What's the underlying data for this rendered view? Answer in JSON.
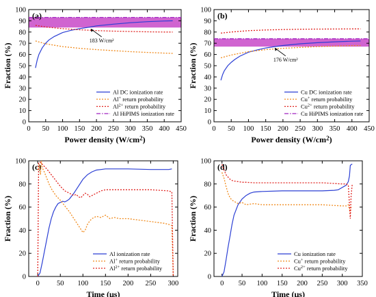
{
  "chart_data": [
    {
      "panel": "(a)",
      "type": "line",
      "xlabel": "Power density (W/cm²)",
      "ylabel": "Fraction (%)",
      "xlim": [
        0,
        450
      ],
      "ylim": [
        0,
        100
      ],
      "xticks": [
        0,
        50,
        100,
        150,
        200,
        250,
        300,
        350,
        400,
        450
      ],
      "yticks": [
        0,
        10,
        20,
        30,
        40,
        50,
        60,
        70,
        80,
        90,
        100
      ],
      "legend_position": "bottom-right",
      "band": {
        "y_low": 84,
        "y_high": 93,
        "color": "#c030c0"
      },
      "annotation": {
        "text": "183 W/cm²",
        "x": 183,
        "y": 83
      },
      "series": [
        {
          "name": "Al DC ionization rate",
          "color": "#2b3fd4",
          "dash": "solid",
          "x": [
            20,
            25,
            30,
            40,
            50,
            60,
            75,
            100,
            125,
            150,
            183,
            200,
            250,
            300,
            350,
            400,
            425
          ],
          "y": [
            48,
            55,
            60,
            66,
            70,
            73,
            76,
            79.5,
            81.5,
            83,
            84.5,
            85.5,
            87,
            88.3,
            89.2,
            89.8,
            90
          ]
        },
        {
          "name": "Al⁺ return probability",
          "color": "#f08a1c",
          "dash": "dot",
          "x": [
            20,
            50,
            100,
            150,
            200,
            250,
            300,
            350,
            400,
            425
          ],
          "y": [
            72,
            69.5,
            67,
            65.5,
            64.3,
            63.4,
            62.5,
            61.8,
            61.2,
            61
          ]
        },
        {
          "name": "Al²⁺ return probability",
          "color": "#e0201c",
          "dash": "dot",
          "x": [
            20,
            50,
            100,
            150,
            200,
            250,
            300,
            350,
            400,
            425
          ],
          "y": [
            86,
            84.5,
            83,
            82,
            81.3,
            80.8,
            80.5,
            80.2,
            80,
            80
          ]
        },
        {
          "name": "Al HiPIMS ionization rate",
          "color": "#a020c0",
          "dash": "dashdot",
          "x": [
            0,
            450
          ],
          "y": [
            93,
            93
          ]
        }
      ]
    },
    {
      "panel": "(b)",
      "type": "line",
      "xlabel": "Power density (W/cm²)",
      "ylabel": "Fraction (%)",
      "xlim": [
        0,
        450
      ],
      "ylim": [
        0,
        100
      ],
      "xticks": [
        0,
        50,
        100,
        150,
        200,
        250,
        300,
        350,
        400,
        450
      ],
      "yticks": [
        0,
        10,
        20,
        30,
        40,
        50,
        60,
        70,
        80,
        90,
        100
      ],
      "legend_position": "bottom-right",
      "band": {
        "y_low": 67,
        "y_high": 74,
        "color": "#c030c0"
      },
      "annotation": {
        "text": "176 W/cm²",
        "x": 176,
        "y": 66
      },
      "series": [
        {
          "name": "Cu DC ionization rate",
          "color": "#2b3fd4",
          "dash": "solid",
          "x": [
            20,
            25,
            30,
            40,
            50,
            60,
            75,
            100,
            125,
            150,
            176,
            200,
            250,
            300,
            350,
            400,
            425
          ],
          "y": [
            37,
            42,
            45.5,
            50,
            53,
            55.5,
            58.5,
            62,
            64,
            65.8,
            67,
            68,
            69.5,
            70.5,
            71.3,
            71.8,
            72
          ]
        },
        {
          "name": "Cu⁺ return probability",
          "color": "#f08a1c",
          "dash": "dot",
          "x": [
            20,
            50,
            100,
            150,
            200,
            250,
            300,
            350,
            400,
            425
          ],
          "y": [
            57,
            59.5,
            62.5,
            64.3,
            65.5,
            66.3,
            67,
            67.5,
            67.9,
            68
          ]
        },
        {
          "name": "Cu²⁺ return probability",
          "color": "#e0201c",
          "dash": "dot",
          "x": [
            20,
            50,
            100,
            150,
            200,
            250,
            300,
            350,
            400,
            425
          ],
          "y": [
            79,
            80,
            81.2,
            81.8,
            82.2,
            82.5,
            82.6,
            82.7,
            82.8,
            82.8
          ]
        },
        {
          "name": "Cu HiPIMS ionization rate",
          "color": "#a020c0",
          "dash": "dashdot",
          "x": [
            0,
            450
          ],
          "y": [
            74,
            74
          ]
        }
      ]
    },
    {
      "panel": "(c)",
      "type": "line",
      "xlabel": "Time (μs)",
      "ylabel": "Fraction (%)",
      "xlim": [
        -20,
        310
      ],
      "ylim": [
        0,
        100
      ],
      "xticks": [
        0,
        50,
        100,
        150,
        200,
        250,
        300
      ],
      "yticks": [
        0,
        20,
        40,
        60,
        80,
        100
      ],
      "legend_position": "bottom-right",
      "series": [
        {
          "name": "Al ionization rate",
          "color": "#2b3fd4",
          "dash": "solid",
          "x": [
            0,
            5,
            10,
            15,
            20,
            25,
            30,
            35,
            40,
            45,
            50,
            55,
            60,
            65,
            70,
            80,
            90,
            100,
            110,
            120,
            130,
            140,
            150,
            160,
            180,
            200,
            250,
            290,
            297
          ],
          "y": [
            0,
            3,
            12,
            22,
            32,
            42,
            50,
            56,
            60,
            63,
            64,
            65,
            64.5,
            65.5,
            67,
            72,
            78,
            84,
            88,
            90.5,
            92,
            92.5,
            93,
            93,
            93,
            93,
            92.5,
            92.5,
            93
          ]
        },
        {
          "name": "Al⁺ return probability",
          "color": "#f08a1c",
          "dash": "dot",
          "x": [
            0,
            3,
            6,
            8,
            10,
            15,
            20,
            25,
            30,
            40,
            50,
            60,
            70,
            80,
            90,
            100,
            105,
            110,
            115,
            120,
            130,
            140,
            150,
            160,
            170,
            180,
            200,
            220,
            240,
            260,
            280,
            290,
            297,
            300
          ],
          "y": [
            92,
            97,
            88,
            100,
            94,
            90,
            85,
            80,
            76,
            70,
            66,
            61,
            56,
            50,
            44,
            38,
            40,
            45,
            48,
            50,
            52,
            51,
            53,
            50,
            51,
            50,
            50,
            49,
            48,
            47,
            46,
            45,
            44,
            0
          ]
        },
        {
          "name": "Al²⁺ return probability",
          "color": "#e0201c",
          "dash": "dot",
          "x": [
            0,
            2,
            5,
            10,
            15,
            20,
            30,
            40,
            50,
            60,
            70,
            80,
            85,
            90,
            95,
            100,
            105,
            110,
            115,
            120,
            130,
            140,
            150,
            160,
            180,
            200,
            250,
            290,
            297,
            300
          ],
          "y": [
            0,
            98,
            99,
            97,
            95,
            93,
            88,
            83,
            78,
            74,
            72,
            70,
            71,
            69,
            68,
            70,
            72,
            71,
            69,
            70,
            72,
            74,
            75,
            75,
            75,
            75,
            75,
            74,
            73,
            0
          ]
        }
      ]
    },
    {
      "panel": "(d)",
      "type": "line",
      "xlabel": "Time (μs)",
      "ylabel": "Fraction (%)",
      "xlim": [
        -20,
        350
      ],
      "ylim": [
        0,
        100
      ],
      "xticks": [
        0,
        50,
        100,
        150,
        200,
        250,
        300,
        350
      ],
      "yticks": [
        0,
        20,
        40,
        60,
        80,
        100
      ],
      "legend_position": "bottom-right",
      "series": [
        {
          "name": "Cu ionization rate",
          "color": "#2b3fd4",
          "dash": "solid",
          "x": [
            0,
            5,
            10,
            15,
            20,
            25,
            30,
            40,
            50,
            60,
            70,
            80,
            100,
            150,
            200,
            250,
            280,
            290,
            300,
            305,
            310,
            315,
            318,
            320,
            323,
            325
          ],
          "y": [
            0,
            4,
            14,
            25,
            35,
            45,
            53,
            62,
            67,
            70,
            72,
            73,
            73.5,
            74,
            74,
            74,
            74.5,
            75,
            77,
            78,
            79,
            82,
            87,
            96,
            97,
            97
          ]
        },
        {
          "name": "Cu⁺ return probability",
          "color": "#f08a1c",
          "dash": "dot",
          "x": [
            0,
            5,
            10,
            15,
            20,
            25,
            30,
            40,
            50,
            60,
            80,
            100,
            150,
            200,
            250,
            300,
            310,
            315,
            320,
            322,
            325
          ],
          "y": [
            90,
            85,
            78,
            72,
            68,
            66,
            65,
            63,
            64,
            62,
            63,
            62,
            62,
            62,
            62,
            61,
            61,
            62,
            55,
            60,
            61
          ]
        },
        {
          "name": "Cu²⁺ return probability",
          "color": "#e0201c",
          "dash": "dot",
          "x": [
            0,
            5,
            10,
            15,
            20,
            25,
            30,
            40,
            50,
            60,
            80,
            100,
            150,
            200,
            250,
            300,
            310,
            315,
            320,
            322,
            325
          ],
          "y": [
            97,
            92,
            88,
            86,
            84,
            83,
            82.5,
            82,
            81.5,
            81.5,
            81,
            81,
            81,
            81,
            81,
            80,
            80,
            79,
            50,
            70,
            80
          ]
        }
      ]
    }
  ]
}
